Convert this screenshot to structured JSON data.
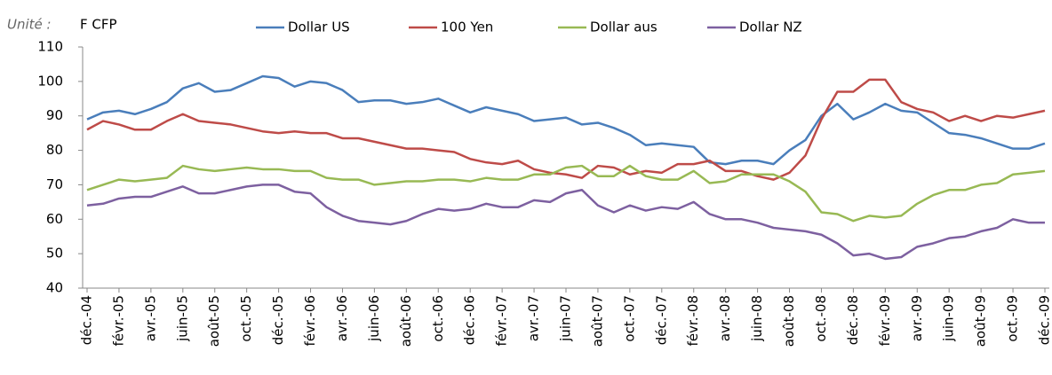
{
  "chart_data": {
    "type": "line",
    "unit_label": "Unité :",
    "unit": "F CFP",
    "categories": [
      "déc.-04",
      null,
      "févr.-05",
      null,
      "avr.-05",
      null,
      "juin-05",
      null,
      "août-05",
      null,
      "oct.-05",
      null,
      "déc.-05",
      null,
      "févr.-06",
      null,
      "avr.-06",
      null,
      "juin-06",
      null,
      "août-06",
      null,
      "oct.-06",
      null,
      "déc.-06",
      null,
      "févr.-07",
      null,
      "avr.-07",
      null,
      "juin-07",
      null,
      "août-07",
      null,
      "oct.-07",
      null,
      "déc.-07",
      null,
      "févr.-08",
      null,
      "avr.-08",
      null,
      "juin-08",
      null,
      "août-08",
      null,
      "oct.-08",
      null,
      "déc.-08",
      null,
      "févr.-09",
      null,
      "avr.-09",
      null,
      "juin-09",
      null,
      "août-09",
      null,
      "oct.-09",
      null,
      "déc.-09"
    ],
    "series": [
      {
        "name": "Dollar US",
        "color": "#4a7ebb",
        "values": [
          89,
          91,
          91.5,
          90.5,
          92,
          94,
          98,
          99.5,
          97,
          97.5,
          99.5,
          101.5,
          101,
          98.5,
          100,
          99.5,
          97.5,
          94,
          94.5,
          94.5,
          93.5,
          94,
          95,
          93,
          91,
          92.5,
          91.5,
          90.5,
          88.5,
          89,
          89.5,
          87.5,
          88,
          86.5,
          84.5,
          81.5,
          82,
          81.5,
          81,
          76.5,
          76,
          77,
          77,
          76,
          80,
          83,
          90,
          93.5,
          89,
          91,
          93.5,
          91.5,
          91,
          88,
          85,
          84.5,
          83.5,
          82,
          80.5,
          80.5,
          82
        ]
      },
      {
        "name": "100 Yen",
        "color": "#be4b48",
        "values": [
          86,
          88.5,
          87.5,
          86,
          86,
          88.5,
          90.5,
          88.5,
          88,
          87.5,
          86.5,
          85.5,
          85,
          85.5,
          85,
          85,
          83.5,
          83.5,
          82.5,
          81.5,
          80.5,
          80.5,
          80,
          79.5,
          77.5,
          76.5,
          76,
          77,
          74.5,
          73.5,
          73,
          72,
          75.5,
          75,
          73,
          74,
          73.5,
          76,
          76,
          77,
          74,
          74,
          72.5,
          71.5,
          73.5,
          78.5,
          89,
          97,
          97,
          100.5,
          100.5,
          94,
          92,
          91,
          88.5,
          90,
          88.5,
          90,
          89.5,
          90.5,
          91.5
        ]
      },
      {
        "name": "Dollar aus",
        "color": "#98b954",
        "values": [
          68.5,
          70,
          71.5,
          71,
          71.5,
          72,
          75.5,
          74.5,
          74,
          74.5,
          75,
          74.5,
          74.5,
          74,
          74,
          72,
          71.5,
          71.5,
          70,
          70.5,
          71,
          71,
          71.5,
          71.5,
          71,
          72,
          71.5,
          71.5,
          73,
          73,
          75,
          75.5,
          72.5,
          72.5,
          75.5,
          72.5,
          71.5,
          71.5,
          74,
          70.5,
          71,
          73,
          73,
          73,
          71,
          68,
          62,
          61.5,
          59.5,
          61,
          60.5,
          61,
          64.5,
          67,
          68.5,
          68.5,
          70,
          70.5,
          73,
          73.5,
          74
        ]
      },
      {
        "name": "Dollar NZ",
        "color": "#7d60a0",
        "values": [
          64,
          64.5,
          66,
          66.5,
          66.5,
          68,
          69.5,
          67.5,
          67.5,
          68.5,
          69.5,
          70,
          70,
          68,
          67.5,
          63.5,
          61,
          59.5,
          59,
          58.5,
          59.5,
          61.5,
          63,
          62.5,
          63,
          64.5,
          63.5,
          63.5,
          65.5,
          65,
          67.5,
          68.5,
          64,
          62,
          64,
          62.5,
          63.5,
          63,
          65,
          61.5,
          60,
          60,
          59,
          57.5,
          57,
          56.5,
          55.5,
          53,
          49.5,
          50,
          48.5,
          49,
          52,
          53,
          54.5,
          55,
          56.5,
          57.5,
          60,
          59,
          59
        ]
      }
    ],
    "ylim": [
      40,
      110
    ],
    "yticks": [
      40,
      50,
      60,
      70,
      80,
      90,
      100,
      110
    ]
  }
}
